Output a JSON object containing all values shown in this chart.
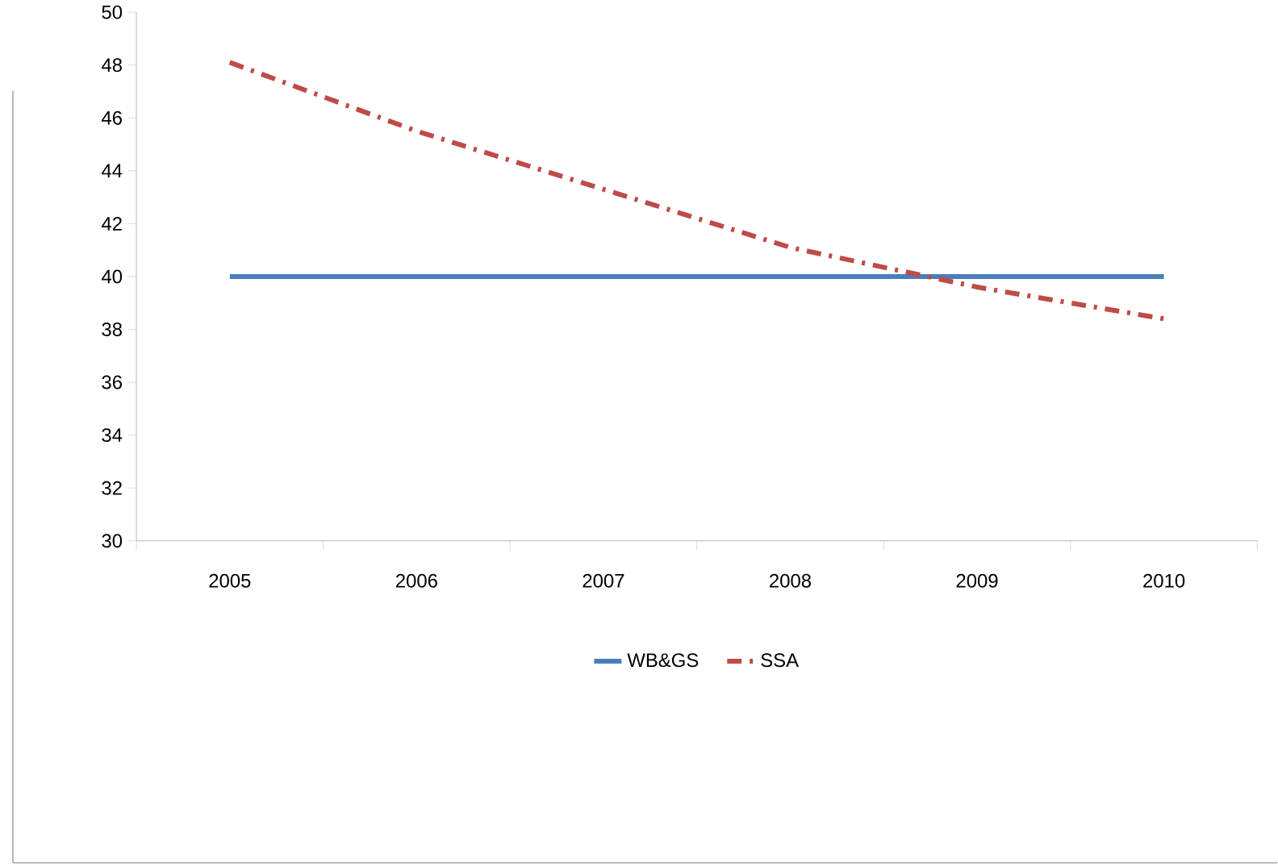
{
  "chart_data": {
    "type": "line",
    "categories": [
      "2005",
      "2006",
      "2007",
      "2008",
      "2009",
      "2010"
    ],
    "series": [
      {
        "name": "WB&GS",
        "color": "#4a7ebb",
        "line_style": "solid",
        "values": [
          40,
          40,
          40,
          40,
          40,
          40
        ]
      },
      {
        "name": "SSA",
        "color": "#be4b48",
        "line_style": "dashdot",
        "values": [
          48.1,
          45.5,
          43.3,
          41.1,
          39.6,
          38.4
        ]
      }
    ],
    "ylim": [
      30,
      50
    ],
    "yticks": [
      30,
      32,
      34,
      36,
      38,
      40,
      42,
      44,
      46,
      48,
      50
    ],
    "grid": false,
    "legend": "bottom",
    "marker": "none"
  }
}
